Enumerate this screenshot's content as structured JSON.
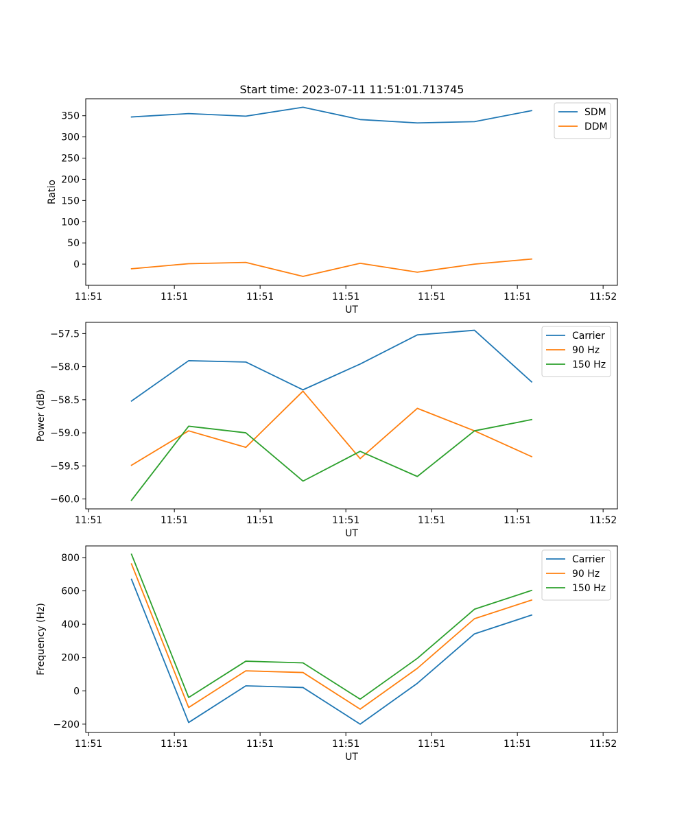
{
  "title": "Start time: 2023-07-11 11:51:01.713745",
  "chart_data": [
    {
      "type": "line",
      "xlabel": "UT",
      "ylabel": "Ratio",
      "x_index": [
        0,
        1,
        2,
        3,
        4,
        5,
        6,
        7
      ],
      "xlim": [
        -0.8,
        8.5
      ],
      "x_ticks": [
        -0.75,
        0.75,
        2.25,
        3.75,
        5.25,
        6.75,
        8.25
      ],
      "x_tick_labels": [
        "11:51",
        "11:51",
        "11:51",
        "11:51",
        "11:51",
        "11:51",
        "11:52"
      ],
      "ylim": [
        -50,
        390
      ],
      "y_ticks": [
        0,
        50,
        100,
        150,
        200,
        250,
        300,
        350
      ],
      "y_tick_labels": [
        "0",
        "50",
        "100",
        "150",
        "200",
        "250",
        "300",
        "350"
      ],
      "legend_position": "top-right",
      "series": [
        {
          "name": "SDM",
          "color": "#1f77b4",
          "values": [
            347,
            355,
            349,
            370,
            341,
            333,
            336,
            362
          ]
        },
        {
          "name": "DDM",
          "color": "#ff7f0e",
          "values": [
            -11,
            1,
            4,
            -29,
            2,
            -19,
            0,
            12
          ]
        }
      ]
    },
    {
      "type": "line",
      "xlabel": "UT",
      "ylabel": "Power (dB)",
      "x_index": [
        0,
        1,
        2,
        3,
        4,
        5,
        6,
        7
      ],
      "xlim": [
        -0.8,
        8.5
      ],
      "x_ticks": [
        -0.75,
        0.75,
        2.25,
        3.75,
        5.25,
        6.75,
        8.25
      ],
      "x_tick_labels": [
        "11:51",
        "11:51",
        "11:51",
        "11:51",
        "11:51",
        "11:51",
        "11:52"
      ],
      "ylim": [
        -60.15,
        -57.33
      ],
      "y_ticks": [
        -57.5,
        -58.0,
        -58.5,
        -59.0,
        -59.5,
        -60.0
      ],
      "y_tick_labels": [
        "−57.5",
        "−58.0",
        "−58.5",
        "−59.0",
        "−59.5",
        "−60.0"
      ],
      "legend_position": "top-right",
      "series": [
        {
          "name": "Carrier",
          "color": "#1f77b4",
          "values": [
            -58.52,
            -57.91,
            -57.93,
            -58.35,
            -57.96,
            -57.52,
            -57.45,
            -58.23
          ]
        },
        {
          "name": "90 Hz",
          "color": "#ff7f0e",
          "values": [
            -59.49,
            -58.97,
            -59.22,
            -58.37,
            -59.39,
            -58.63,
            -58.97,
            -59.36
          ]
        },
        {
          "name": "150 Hz",
          "color": "#2ca02c",
          "values": [
            -60.02,
            -58.9,
            -59.0,
            -59.73,
            -59.28,
            -59.66,
            -58.97,
            -58.8
          ]
        }
      ]
    },
    {
      "type": "line",
      "xlabel": "UT",
      "ylabel": "Frequency (Hz)",
      "x_index": [
        0,
        1,
        2,
        3,
        4,
        5,
        6,
        7
      ],
      "xlim": [
        -0.8,
        8.5
      ],
      "x_ticks": [
        -0.75,
        0.75,
        2.25,
        3.75,
        5.25,
        6.75,
        8.25
      ],
      "x_tick_labels": [
        "11:51",
        "11:51",
        "11:51",
        "11:51",
        "11:51",
        "11:51",
        "11:52"
      ],
      "ylim": [
        -250,
        870
      ],
      "y_ticks": [
        -200,
        0,
        200,
        400,
        600,
        800
      ],
      "y_tick_labels": [
        "−200",
        "0",
        "200",
        "400",
        "600",
        "800"
      ],
      "legend_position": "top-right",
      "series": [
        {
          "name": "Carrier",
          "color": "#1f77b4",
          "values": [
            670,
            -190,
            30,
            20,
            -200,
            45,
            342,
            455
          ]
        },
        {
          "name": "90 Hz",
          "color": "#ff7f0e",
          "values": [
            762,
            -100,
            120,
            110,
            -110,
            135,
            433,
            545
          ]
        },
        {
          "name": "150 Hz",
          "color": "#2ca02c",
          "values": [
            820,
            -40,
            178,
            168,
            -50,
            195,
            490,
            603
          ]
        }
      ]
    }
  ]
}
